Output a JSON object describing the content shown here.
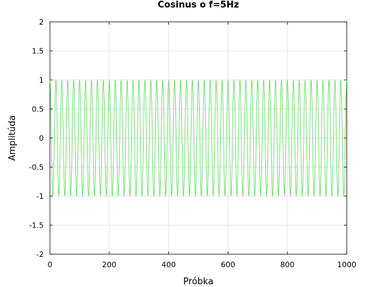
{
  "chart_data": {
    "type": "line",
    "title": "Cosinus o f=5Hz",
    "xlabel": "Próbka",
    "ylabel": "Amplitúda",
    "xlim": [
      0,
      1000
    ],
    "ylim": [
      -2,
      2
    ],
    "x_ticks": [
      0,
      200,
      400,
      600,
      800,
      1000
    ],
    "x_tick_labels": [
      "0",
      "200",
      "400",
      "600",
      "800",
      "1000"
    ],
    "y_ticks": [
      -2,
      -1.5,
      -1,
      -0.5,
      0,
      0.5,
      1,
      1.5,
      2
    ],
    "y_tick_labels": [
      "-2",
      "-1.5",
      "-1",
      "-0.5",
      "0",
      "0.5",
      "1",
      "1.5",
      "2"
    ],
    "grid": true,
    "series": [
      {
        "function": "cos",
        "amplitude": 1,
        "cycles": 50,
        "x_start": 0,
        "x_end": 1000,
        "color": "#66dd66"
      }
    ]
  }
}
